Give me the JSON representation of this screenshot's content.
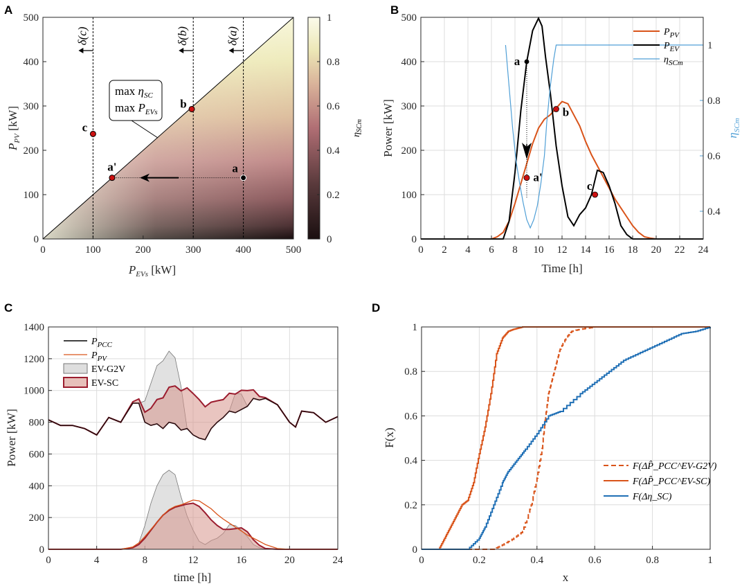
{
  "chart_data": [
    {
      "panel": "A",
      "type": "heatmap",
      "xlabel": "P_EVs [kW]",
      "ylabel": "P_PV [kW]",
      "xlim": [
        0,
        500
      ],
      "ylim": [
        0,
        500
      ],
      "xticks": [
        "0",
        "100",
        "200",
        "300",
        "400",
        "500"
      ],
      "yticks": [
        "0",
        "100",
        "200",
        "300",
        "400",
        "500"
      ],
      "colorbar": {
        "label": "η_SCm",
        "range": [
          0,
          1
        ],
        "ticks": [
          "0",
          "0.2",
          "0.4",
          "0.6",
          "0.8",
          "1"
        ]
      },
      "vlines": [
        {
          "x": 100,
          "label": "δ(c)"
        },
        {
          "x": 300,
          "label": "δ(b)"
        },
        {
          "x": 400,
          "label": "δ(a)"
        }
      ],
      "points": [
        {
          "label": "a",
          "x": 400,
          "y": 138,
          "color": "#000000"
        },
        {
          "label": "a'",
          "x": 138,
          "y": 138,
          "color": "#cc1111"
        },
        {
          "label": "b",
          "x": 297,
          "y": 293,
          "color": "#cc1111"
        },
        {
          "label": "c",
          "x": 100,
          "y": 237,
          "color": "#cc1111"
        }
      ],
      "annotation_lines": [
        "max η_SC",
        "max P_EVs"
      ]
    },
    {
      "panel": "B",
      "type": "line",
      "xlabel": "Time [h]",
      "ylabel": "Power [kW]",
      "ylabel_right": "η_SCm",
      "xlim": [
        0,
        24
      ],
      "ylim": [
        0,
        500
      ],
      "ylim_right": [
        0.3,
        1.1
      ],
      "xticks": [
        "0",
        "2",
        "4",
        "6",
        "8",
        "10",
        "12",
        "14",
        "16",
        "18",
        "20",
        "22",
        "24"
      ],
      "yticks": [
        "0",
        "100",
        "200",
        "300",
        "400",
        "500"
      ],
      "yticks_right": [
        "0.4",
        "0.6",
        "0.8",
        "1"
      ],
      "series": [
        {
          "name": "P_PV",
          "color": "#d95319",
          "x": [
            0,
            6,
            6.5,
            7,
            7.5,
            8,
            8.5,
            9,
            9.5,
            10,
            10.5,
            11,
            11.5,
            12,
            12.5,
            13,
            13.5,
            14,
            14.5,
            15,
            15.5,
            16,
            16.5,
            17,
            17.5,
            18,
            18.5,
            19,
            19.5,
            20,
            24
          ],
          "values": [
            0,
            0,
            5,
            15,
            40,
            80,
            125,
            170,
            215,
            250,
            270,
            280,
            295,
            310,
            305,
            280,
            255,
            220,
            190,
            165,
            140,
            115,
            90,
            70,
            50,
            30,
            15,
            5,
            2,
            0,
            0
          ]
        },
        {
          "name": "P_EV",
          "color": "#000000",
          "x": [
            0,
            7,
            7.5,
            8,
            8.5,
            9,
            9.5,
            10,
            10.3,
            10.6,
            11,
            11.5,
            12,
            12.5,
            13,
            13.5,
            14,
            14.5,
            15,
            15.5,
            16,
            16.5,
            17,
            17.5,
            18,
            24
          ],
          "values": [
            0,
            0,
            40,
            150,
            290,
            400,
            470,
            498,
            480,
            410,
            330,
            210,
            120,
            50,
            30,
            55,
            70,
            100,
            155,
            150,
            120,
            80,
            30,
            10,
            0,
            0
          ]
        },
        {
          "name": "η_SCm",
          "color": "#4f9fd6",
          "axis": "right",
          "x": [
            7.2,
            7.5,
            7.8,
            8.1,
            8.4,
            8.7,
            9.0,
            9.3,
            9.6,
            9.9,
            10.2,
            10.5,
            10.7,
            11.0,
            11.3,
            11.5,
            24
          ],
          "values": [
            1.0,
            0.85,
            0.7,
            0.58,
            0.5,
            0.43,
            0.37,
            0.34,
            0.37,
            0.42,
            0.5,
            0.6,
            0.72,
            0.85,
            0.95,
            1.0,
            1.0
          ]
        }
      ],
      "points": [
        {
          "label": "a",
          "x": 9,
          "y": 400,
          "color": "#000000"
        },
        {
          "label": "a'",
          "x": 9,
          "y": 138,
          "color": "#cc1111"
        },
        {
          "label": "b",
          "x": 11.5,
          "y": 293,
          "color": "#cc1111"
        },
        {
          "label": "c",
          "x": 14.8,
          "y": 100,
          "color": "#cc1111"
        }
      ],
      "legend": [
        "P_PV",
        "P_EV",
        "η_SCm"
      ]
    },
    {
      "panel": "C",
      "type": "area",
      "xlabel": "time [h]",
      "ylabel": "Power [kW]",
      "xlim": [
        0,
        24
      ],
      "ylim": [
        0,
        1400
      ],
      "xticks": [
        "0",
        "4",
        "8",
        "12",
        "16",
        "20",
        "24"
      ],
      "yticks": [
        "0",
        "200",
        "400",
        "600",
        "800",
        "1000",
        "1200",
        "1400"
      ],
      "legend": [
        "P_PCC",
        "P_PV",
        "EV-G2V",
        "EV-SC"
      ],
      "x": [
        0,
        1,
        2,
        3,
        4,
        5,
        6,
        7,
        7.5,
        8,
        8.5,
        9,
        9.5,
        10,
        10.5,
        11,
        11.5,
        12,
        12.5,
        13,
        13.5,
        14,
        14.5,
        15,
        15.5,
        16,
        16.5,
        17,
        17.5,
        18,
        19,
        20,
        20.5,
        21,
        22,
        23,
        24
      ],
      "series": [
        {
          "name": "P_PCC",
          "color": "#000000",
          "values": [
            815,
            780,
            780,
            760,
            720,
            830,
            800,
            920,
            920,
            800,
            780,
            790,
            760,
            800,
            790,
            750,
            760,
            720,
            700,
            690,
            760,
            800,
            830,
            870,
            860,
            880,
            900,
            950,
            940,
            950,
            910,
            800,
            770,
            870,
            860,
            800,
            835
          ]
        },
        {
          "name": "P_PV",
          "color": "#d95319",
          "values": [
            0,
            0,
            0,
            0,
            0,
            0,
            0,
            15,
            40,
            80,
            125,
            170,
            215,
            250,
            270,
            280,
            295,
            310,
            305,
            280,
            255,
            220,
            190,
            165,
            140,
            115,
            90,
            70,
            50,
            30,
            5,
            0,
            0,
            0,
            0,
            0,
            0
          ]
        },
        {
          "name": "EV-G2V",
          "color": "#b0b0b0",
          "values": [
            0,
            0,
            0,
            0,
            0,
            0,
            0,
            10,
            40,
            150,
            290,
            400,
            470,
            498,
            470,
            330,
            210,
            120,
            50,
            30,
            55,
            70,
            100,
            155,
            150,
            120,
            80,
            30,
            10,
            0,
            0,
            0,
            0,
            0,
            0,
            0,
            0
          ]
        },
        {
          "name": "EV-SC",
          "color": "#9b1c2e",
          "values": [
            0,
            0,
            0,
            0,
            0,
            0,
            0,
            10,
            30,
            70,
            120,
            170,
            215,
            245,
            265,
            275,
            285,
            290,
            270,
            230,
            185,
            150,
            125,
            125,
            130,
            135,
            110,
            60,
            25,
            5,
            0,
            0,
            0,
            0,
            0,
            0,
            0
          ]
        }
      ]
    },
    {
      "panel": "D",
      "type": "line",
      "xlabel": "x",
      "ylabel": "F(x)",
      "xlim": [
        0,
        1
      ],
      "ylim": [
        0,
        1
      ],
      "xticks": [
        "0",
        "0.2",
        "0.4",
        "0.6",
        "0.8",
        "1"
      ],
      "yticks": [
        "0",
        "0.2",
        "0.4",
        "0.6",
        "0.8",
        "1"
      ],
      "legend": [
        "F(ΔP̂_PCC^EV-G2V)",
        "F(ΔP̂_PCC^EV-SC)",
        "F(Δη_SC)"
      ],
      "series": [
        {
          "name": "F(ΔP̂_PCC^EV-G2V)",
          "color": "#d95319",
          "dash": true,
          "x": [
            0,
            0.25,
            0.28,
            0.32,
            0.35,
            0.38,
            0.4,
            0.42,
            0.43,
            0.44,
            0.45,
            0.46,
            0.47,
            0.48,
            0.5,
            0.52,
            0.55,
            0.6,
            1
          ],
          "values": [
            0,
            0,
            0.02,
            0.05,
            0.08,
            0.2,
            0.32,
            0.48,
            0.6,
            0.7,
            0.75,
            0.8,
            0.85,
            0.9,
            0.95,
            0.98,
            0.99,
            1,
            1
          ]
        },
        {
          "name": "F(ΔP̂_PCC^EV-SC)",
          "color": "#d95319",
          "x": [
            0,
            0.06,
            0.08,
            0.1,
            0.12,
            0.14,
            0.16,
            0.18,
            0.2,
            0.22,
            0.24,
            0.26,
            0.28,
            0.3,
            0.32,
            0.35,
            1
          ],
          "values": [
            0,
            0,
            0.05,
            0.1,
            0.15,
            0.2,
            0.22,
            0.3,
            0.43,
            0.55,
            0.7,
            0.88,
            0.95,
            0.98,
            0.99,
            1,
            1
          ]
        },
        {
          "name": "F(Δη_SC)",
          "color": "#1f6fb5",
          "x": [
            0,
            0.16,
            0.2,
            0.22,
            0.25,
            0.28,
            0.3,
            0.33,
            0.36,
            0.4,
            0.44,
            0.48,
            0.55,
            0.6,
            0.65,
            0.7,
            0.75,
            0.8,
            0.85,
            0.9,
            0.95,
            1
          ],
          "values": [
            0,
            0,
            0.05,
            0.1,
            0.2,
            0.3,
            0.35,
            0.4,
            0.45,
            0.52,
            0.6,
            0.62,
            0.7,
            0.75,
            0.8,
            0.85,
            0.88,
            0.91,
            0.94,
            0.97,
            0.98,
            1
          ]
        }
      ]
    }
  ]
}
